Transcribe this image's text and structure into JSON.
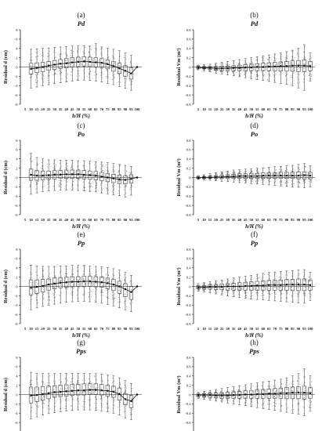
{
  "figure": {
    "x_values": [
      5,
      10,
      15,
      20,
      25,
      30,
      35,
      40,
      45,
      50,
      55,
      60,
      65,
      70,
      75,
      80,
      85,
      90,
      95,
      100
    ]
  },
  "chart_data": [
    {
      "type": "boxplot",
      "panel_label": "(a)",
      "title": "Pd",
      "xlabel": "h/H (%)",
      "ylabel": "Residual d (cm)",
      "ylim": [
        -8,
        8
      ],
      "yticks": [
        -8,
        -6,
        -4,
        -2,
        0,
        2,
        4,
        6,
        8
      ],
      "x": [
        5,
        10,
        15,
        20,
        25,
        30,
        35,
        40,
        45,
        50,
        55,
        60,
        65,
        70,
        75,
        80,
        85,
        90,
        95,
        100
      ],
      "medians": [
        null,
        -0.4,
        -0.2,
        0.0,
        0.3,
        0.5,
        0.7,
        0.8,
        1.0,
        1.1,
        1.2,
        1.1,
        1.0,
        0.9,
        0.6,
        0.2,
        -0.3,
        -0.8,
        -1.4,
        0.0
      ],
      "q1": [
        null,
        -1.5,
        -1.2,
        -1.0,
        -0.7,
        -0.5,
        -0.3,
        -0.2,
        0.0,
        0.1,
        0.2,
        0.1,
        0.0,
        -0.1,
        -0.4,
        -0.9,
        -1.4,
        -2.0,
        -2.6,
        null
      ],
      "q3": [
        null,
        0.8,
        0.9,
        1.0,
        1.2,
        1.4,
        1.6,
        1.8,
        2.0,
        2.1,
        2.2,
        2.1,
        2.0,
        1.8,
        1.5,
        1.2,
        0.8,
        0.3,
        -0.2,
        null
      ],
      "whisker_low": [
        null,
        -4.5,
        -4.3,
        -4.0,
        -3.8,
        -3.6,
        -3.4,
        -3.2,
        -3.0,
        -2.9,
        -2.8,
        -2.9,
        -3.0,
        -3.2,
        -3.5,
        -3.8,
        -4.2,
        -4.6,
        -5.0,
        null
      ],
      "whisker_high": [
        null,
        3.8,
        3.9,
        4.0,
        4.1,
        4.2,
        4.3,
        4.4,
        4.5,
        4.5,
        4.6,
        4.5,
        5.0,
        4.3,
        4.0,
        3.8,
        3.5,
        3.0,
        2.5,
        null
      ]
    },
    {
      "type": "boxplot",
      "panel_label": "(b)",
      "title": "Pd",
      "xlabel": "h/H (%)",
      "ylabel": "Residual Vm (m³)",
      "ylim": [
        -0.8,
        0.8
      ],
      "yticks": [
        -0.8,
        -0.6,
        -0.4,
        -0.2,
        0,
        0.2,
        0.4,
        0.6,
        0.8
      ],
      "x": [
        5,
        10,
        15,
        20,
        25,
        30,
        35,
        40,
        45,
        50,
        55,
        60,
        65,
        70,
        75,
        80,
        85,
        90,
        95,
        100
      ],
      "medians": [
        -0.01,
        -0.02,
        -0.02,
        -0.03,
        -0.03,
        -0.03,
        -0.02,
        -0.02,
        -0.01,
        -0.01,
        0.0,
        0.0,
        0.01,
        0.01,
        0.02,
        0.02,
        0.03,
        0.03,
        0.03,
        0.02
      ],
      "q1": [
        -0.03,
        -0.04,
        -0.05,
        -0.07,
        -0.08,
        -0.08,
        -0.08,
        -0.08,
        -0.08,
        -0.08,
        -0.08,
        -0.08,
        -0.08,
        -0.08,
        -0.09,
        -0.09,
        -0.09,
        -0.1,
        -0.1,
        -0.08
      ],
      "q3": [
        0.01,
        0.01,
        0.01,
        0.01,
        0.02,
        0.02,
        0.03,
        0.04,
        0.05,
        0.06,
        0.07,
        0.08,
        0.09,
        0.1,
        0.11,
        0.12,
        0.13,
        0.14,
        0.15,
        0.12
      ],
      "whisker_low": [
        -0.06,
        -0.08,
        -0.1,
        -0.13,
        -0.15,
        -0.17,
        -0.19,
        -0.21,
        -0.23,
        -0.25,
        -0.27,
        -0.29,
        -0.31,
        -0.33,
        -0.35,
        -0.37,
        -0.4,
        -0.45,
        -0.5,
        -0.3
      ],
      "whisker_high": [
        0.04,
        0.05,
        0.06,
        0.08,
        0.1,
        0.12,
        0.14,
        0.16,
        0.18,
        0.2,
        0.22,
        0.24,
        0.26,
        0.28,
        0.3,
        0.33,
        0.36,
        0.4,
        0.48,
        0.3
      ]
    },
    {
      "type": "boxplot",
      "panel_label": "(c)",
      "title": "Po",
      "xlabel": "h/H (%)",
      "ylabel": "Residual d (cm)",
      "ylim": [
        -8,
        8
      ],
      "yticks": [
        -8,
        -6,
        -4,
        -2,
        0,
        2,
        4,
        6,
        8
      ],
      "x": [
        5,
        10,
        15,
        20,
        25,
        30,
        35,
        40,
        45,
        50,
        55,
        60,
        65,
        70,
        75,
        80,
        85,
        90,
        95,
        100
      ],
      "medians": [
        null,
        0.6,
        0.4,
        0.4,
        0.5,
        0.6,
        0.6,
        0.7,
        0.7,
        0.7,
        0.6,
        0.5,
        0.4,
        0.2,
        0.0,
        -0.2,
        -0.4,
        -0.5,
        -0.3,
        0.0
      ],
      "q1": [
        null,
        -0.6,
        -0.6,
        -0.5,
        -0.4,
        -0.3,
        -0.2,
        -0.2,
        -0.2,
        -0.2,
        -0.3,
        -0.4,
        -0.5,
        -0.7,
        -0.9,
        -1.1,
        -1.3,
        -1.4,
        -1.2,
        null
      ],
      "q3": [
        null,
        1.8,
        1.5,
        1.4,
        1.4,
        1.5,
        1.5,
        1.6,
        1.6,
        1.6,
        1.5,
        1.4,
        1.3,
        1.1,
        0.9,
        0.7,
        0.5,
        0.4,
        0.6,
        null
      ],
      "whisker_low": [
        null,
        -3.6,
        -3.3,
        -3.0,
        -2.9,
        -2.8,
        -2.7,
        -2.7,
        -2.7,
        -2.8,
        -2.9,
        -3.0,
        -3.1,
        -3.3,
        -3.5,
        -3.7,
        -3.9,
        -4.2,
        -3.8,
        null
      ],
      "whisker_high": [
        null,
        5.2,
        4.3,
        4.0,
        3.8,
        3.8,
        3.7,
        3.7,
        3.7,
        3.6,
        3.6,
        3.5,
        3.4,
        3.3,
        3.2,
        3.0,
        2.8,
        2.6,
        2.4,
        null
      ]
    },
    {
      "type": "boxplot",
      "panel_label": "(d)",
      "title": "Po",
      "xlabel": "h/H (%)",
      "ylabel": "Residual Vm (m³)",
      "ylim": [
        -0.8,
        0.8
      ],
      "yticks": [
        -0.8,
        -0.6,
        -0.4,
        -0.2,
        0,
        0.2,
        0.4,
        0.6,
        0.8
      ],
      "x": [
        5,
        10,
        15,
        20,
        25,
        30,
        35,
        40,
        45,
        50,
        55,
        60,
        65,
        70,
        75,
        80,
        85,
        90,
        95,
        100
      ],
      "medians": [
        -0.01,
        0.0,
        0.0,
        0.01,
        0.01,
        0.02,
        0.02,
        0.03,
        0.03,
        0.03,
        0.03,
        0.04,
        0.04,
        0.04,
        0.04,
        0.04,
        0.04,
        0.04,
        0.05,
        0.04
      ],
      "q1": [
        -0.02,
        -0.02,
        -0.02,
        -0.02,
        -0.02,
        -0.02,
        -0.02,
        -0.02,
        -0.02,
        -0.02,
        -0.02,
        -0.02,
        -0.02,
        -0.02,
        -0.02,
        -0.02,
        -0.02,
        -0.03,
        -0.03,
        -0.03
      ],
      "q3": [
        0.01,
        0.02,
        0.03,
        0.04,
        0.05,
        0.06,
        0.07,
        0.08,
        0.08,
        0.09,
        0.09,
        0.1,
        0.1,
        0.1,
        0.11,
        0.11,
        0.11,
        0.12,
        0.12,
        0.11
      ],
      "whisker_low": [
        -0.04,
        -0.05,
        -0.06,
        -0.07,
        -0.08,
        -0.09,
        -0.1,
        -0.11,
        -0.12,
        -0.13,
        -0.14,
        -0.15,
        -0.16,
        -0.17,
        -0.18,
        -0.19,
        -0.2,
        -0.21,
        -0.22,
        -0.2
      ],
      "whisker_high": [
        0.04,
        0.06,
        0.08,
        0.1,
        0.12,
        0.14,
        0.16,
        0.17,
        0.18,
        0.19,
        0.2,
        0.21,
        0.22,
        0.23,
        0.24,
        0.25,
        0.26,
        0.28,
        0.3,
        0.25
      ]
    },
    {
      "type": "boxplot",
      "panel_label": "(e)",
      "title": "Pp",
      "xlabel": "h/H (%)",
      "ylabel": "Residual d (cm)",
      "ylim": [
        -8,
        8
      ],
      "yticks": [
        -8,
        -6,
        -4,
        -2,
        0,
        2,
        4,
        6,
        8
      ],
      "x": [
        5,
        10,
        15,
        20,
        25,
        30,
        35,
        40,
        45,
        50,
        55,
        60,
        65,
        70,
        75,
        80,
        85,
        90,
        95,
        100
      ],
      "medians": [
        null,
        -0.3,
        -0.1,
        0.1,
        0.4,
        0.6,
        0.8,
        0.9,
        1.0,
        1.0,
        1.1,
        1.1,
        1.0,
        0.9,
        0.7,
        0.4,
        0.0,
        -0.6,
        -1.2,
        0.0
      ],
      "q1": [
        null,
        -1.8,
        -1.5,
        -1.2,
        -0.8,
        -0.5,
        -0.3,
        -0.2,
        -0.1,
        0.0,
        0.0,
        0.0,
        -0.1,
        -0.2,
        -0.5,
        -0.9,
        -1.5,
        -2.2,
        -2.8,
        null
      ],
      "q3": [
        null,
        1.4,
        1.4,
        1.5,
        1.6,
        1.8,
        1.9,
        2.0,
        2.1,
        2.1,
        2.2,
        2.2,
        2.1,
        2.0,
        1.8,
        1.5,
        1.1,
        0.6,
        0.0,
        null
      ],
      "whisker_low": [
        null,
        -5.0,
        -4.6,
        -4.3,
        -4.0,
        -3.8,
        -3.6,
        -3.4,
        -3.3,
        -3.2,
        -3.2,
        -3.3,
        -3.4,
        -3.6,
        -3.9,
        -4.2,
        -4.6,
        -5.0,
        -5.4,
        null
      ],
      "whisker_high": [
        null,
        4.6,
        4.4,
        4.3,
        4.3,
        4.3,
        4.4,
        4.4,
        4.5,
        4.5,
        4.5,
        4.4,
        4.3,
        4.2,
        4.0,
        3.8,
        3.5,
        3.0,
        2.4,
        null
      ]
    },
    {
      "type": "boxplot",
      "panel_label": "(f)",
      "title": "Pp",
      "xlabel": "h/H (%)",
      "ylabel": "Residual Vm (m³)",
      "ylim": [
        -0.8,
        0.8
      ],
      "yticks": [
        -0.8,
        -0.6,
        -0.4,
        -0.2,
        0,
        0.2,
        0.4,
        0.6,
        0.8
      ],
      "x": [
        5,
        10,
        15,
        20,
        25,
        30,
        35,
        40,
        45,
        50,
        55,
        60,
        65,
        70,
        75,
        80,
        85,
        90,
        95,
        100
      ],
      "medians": [
        -0.02,
        -0.02,
        -0.01,
        -0.01,
        -0.01,
        0.0,
        0.0,
        0.0,
        0.01,
        0.01,
        0.02,
        0.02,
        0.03,
        0.03,
        0.03,
        0.04,
        0.04,
        0.04,
        0.04,
        0.03
      ],
      "q1": [
        -0.05,
        -0.06,
        -0.06,
        -0.07,
        -0.07,
        -0.08,
        -0.08,
        -0.08,
        -0.08,
        -0.08,
        -0.08,
        -0.08,
        -0.08,
        -0.08,
        -0.08,
        -0.08,
        -0.09,
        -0.09,
        -0.09,
        -0.08
      ],
      "q3": [
        0.01,
        0.02,
        0.03,
        0.04,
        0.05,
        0.06,
        0.07,
        0.08,
        0.09,
        0.1,
        0.11,
        0.12,
        0.13,
        0.13,
        0.14,
        0.15,
        0.15,
        0.16,
        0.16,
        0.14
      ],
      "whisker_low": [
        -0.1,
        -0.12,
        -0.14,
        -0.16,
        -0.18,
        -0.2,
        -0.22,
        -0.24,
        -0.26,
        -0.27,
        -0.28,
        -0.29,
        -0.3,
        -0.31,
        -0.32,
        -0.33,
        -0.34,
        -0.35,
        -0.36,
        -0.3
      ],
      "whisker_high": [
        0.06,
        0.08,
        0.1,
        0.12,
        0.14,
        0.16,
        0.18,
        0.2,
        0.22,
        0.24,
        0.26,
        0.28,
        0.3,
        0.31,
        0.32,
        0.33,
        0.34,
        0.35,
        0.36,
        0.3
      ]
    },
    {
      "type": "boxplot",
      "panel_label": "(g)",
      "title": "Pps",
      "xlabel": "h/H (%)",
      "ylabel": "Residual d (cm)",
      "ylim": [
        -8,
        8
      ],
      "yticks": [
        -8,
        -6,
        -4,
        -2,
        0,
        2,
        4,
        6,
        8
      ],
      "x": [
        5,
        10,
        15,
        20,
        25,
        30,
        35,
        40,
        45,
        50,
        55,
        60,
        65,
        70,
        75,
        80,
        85,
        90,
        95,
        100
      ],
      "medians": [
        null,
        -0.2,
        -0.1,
        0.1,
        0.3,
        0.5,
        0.6,
        0.7,
        0.8,
        0.9,
        0.9,
        1.0,
        1.0,
        0.9,
        0.8,
        0.6,
        0.1,
        -1.0,
        -1.4,
        0.0
      ],
      "q1": [
        null,
        -1.8,
        -1.5,
        -1.2,
        -0.9,
        -0.6,
        -0.4,
        -0.3,
        -0.2,
        -0.1,
        -0.1,
        0.0,
        0.0,
        -0.1,
        -0.3,
        -0.6,
        -1.2,
        -2.2,
        -2.8,
        null
      ],
      "q3": [
        null,
        1.6,
        1.6,
        1.7,
        1.8,
        1.9,
        2.0,
        2.1,
        2.2,
        2.2,
        2.3,
        2.3,
        2.3,
        2.2,
        2.0,
        1.8,
        1.4,
        0.2,
        -0.2,
        null
      ],
      "whisker_low": [
        null,
        -5.2,
        -4.8,
        -4.4,
        -4.1,
        -3.9,
        -3.7,
        -3.5,
        -3.4,
        -3.3,
        -3.3,
        -3.3,
        -3.4,
        -3.5,
        -3.7,
        -4.0,
        -4.4,
        -5.0,
        -5.4,
        null
      ],
      "whisker_high": [
        null,
        4.8,
        4.6,
        4.5,
        4.5,
        4.5,
        4.5,
        4.6,
        4.6,
        4.6,
        4.6,
        4.5,
        4.5,
        4.4,
        4.2,
        4.0,
        3.6,
        3.0,
        2.4,
        null
      ]
    },
    {
      "type": "boxplot",
      "panel_label": "(h)",
      "title": "Pps",
      "xlabel": "h/H (%)",
      "ylabel": "Residual Vm (m³)",
      "ylim": [
        -0.8,
        0.8
      ],
      "yticks": [
        -0.8,
        -0.6,
        -0.4,
        -0.2,
        0,
        0.2,
        0.4,
        0.6,
        0.8
      ],
      "x": [
        5,
        10,
        15,
        20,
        25,
        30,
        35,
        40,
        45,
        50,
        55,
        60,
        65,
        70,
        75,
        80,
        85,
        90,
        95,
        100
      ],
      "medians": [
        -0.01,
        -0.01,
        -0.01,
        -0.02,
        -0.02,
        -0.02,
        -0.01,
        -0.01,
        0.0,
        0.0,
        0.01,
        0.01,
        0.02,
        0.02,
        0.03,
        0.03,
        0.04,
        0.04,
        0.04,
        0.03
      ],
      "q1": [
        -0.04,
        -0.05,
        -0.06,
        -0.07,
        -0.08,
        -0.08,
        -0.08,
        -0.08,
        -0.08,
        -0.08,
        -0.08,
        -0.08,
        -0.08,
        -0.08,
        -0.08,
        -0.09,
        -0.09,
        -0.09,
        -0.1,
        -0.08
      ],
      "q3": [
        0.01,
        0.02,
        0.03,
        0.03,
        0.04,
        0.05,
        0.06,
        0.07,
        0.08,
        0.09,
        0.1,
        0.11,
        0.12,
        0.13,
        0.14,
        0.15,
        0.16,
        0.17,
        0.18,
        0.15
      ],
      "whisker_low": [
        -0.08,
        -0.1,
        -0.12,
        -0.14,
        -0.16,
        -0.18,
        -0.2,
        -0.22,
        -0.24,
        -0.26,
        -0.28,
        -0.3,
        -0.32,
        -0.34,
        -0.36,
        -0.38,
        -0.4,
        -0.42,
        -0.45,
        -0.35
      ],
      "whisker_high": [
        0.05,
        0.07,
        0.09,
        0.11,
        0.13,
        0.15,
        0.17,
        0.19,
        0.21,
        0.23,
        0.25,
        0.27,
        0.29,
        0.31,
        0.33,
        0.36,
        0.4,
        0.45,
        0.55,
        0.4
      ]
    }
  ]
}
